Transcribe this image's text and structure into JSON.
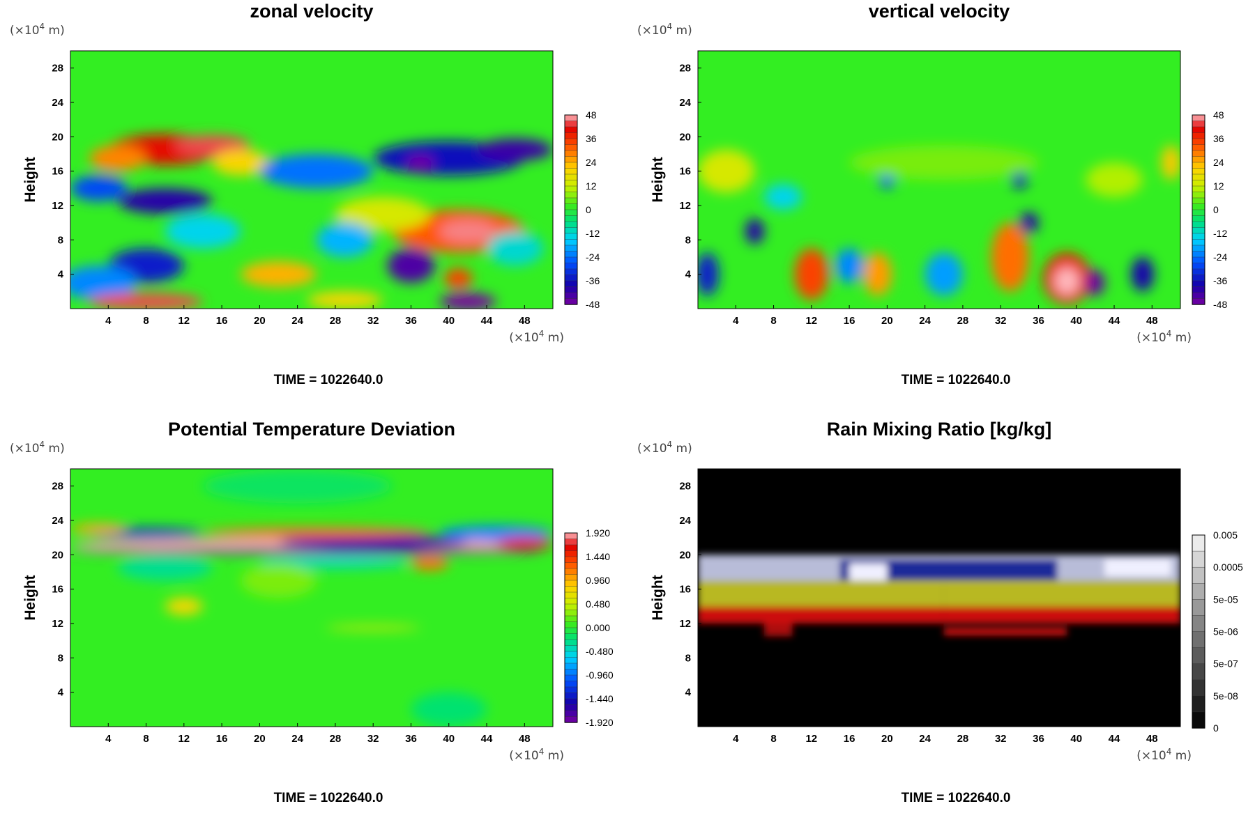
{
  "chart_data": [
    {
      "type": "heatmap",
      "title": "zonal velocity",
      "ylabel": "Height",
      "x_unit_prefix": "(×10",
      "x_unit_exp": "4",
      "x_unit_suffix": " m)",
      "y_unit_prefix": "(×10",
      "y_unit_exp": "4",
      "y_unit_suffix": " m)",
      "xlim": [
        0,
        51
      ],
      "ylim": [
        0,
        30
      ],
      "x_ticks": [
        4,
        8,
        12,
        16,
        20,
        24,
        28,
        32,
        36,
        40,
        44,
        48
      ],
      "y_ticks": [
        4,
        8,
        12,
        16,
        20,
        24,
        28
      ],
      "colorbar": {
        "labels": [
          "48",
          "36",
          "24",
          "12",
          "0",
          "-12",
          "-24",
          "-36",
          "-48"
        ],
        "scale": "rainbow"
      },
      "background": "#33ee22",
      "blobs": [
        {
          "x": 10,
          "y": 18.5,
          "rx": 6,
          "ry": 1.8,
          "value": 40
        },
        {
          "x": 15,
          "y": 19,
          "rx": 4,
          "ry": 1.2,
          "value": 44
        },
        {
          "x": 5,
          "y": 17.5,
          "rx": 3,
          "ry": 1.5,
          "value": 28
        },
        {
          "x": 18,
          "y": 17,
          "rx": 3,
          "ry": 1.5,
          "value": 20
        },
        {
          "x": 10,
          "y": 12.5,
          "rx": 5,
          "ry": 1.5,
          "value": -40
        },
        {
          "x": 3,
          "y": 14,
          "rx": 3,
          "ry": 1.5,
          "value": -28
        },
        {
          "x": 26,
          "y": 16,
          "rx": 6,
          "ry": 2,
          "value": -24
        },
        {
          "x": 40,
          "y": 17.5,
          "rx": 8,
          "ry": 2,
          "value": -36
        },
        {
          "x": 47,
          "y": 18.5,
          "rx": 4,
          "ry": 1.3,
          "value": -42
        },
        {
          "x": 37,
          "y": 17,
          "rx": 1.5,
          "ry": 0.7,
          "value": -48
        },
        {
          "x": 41,
          "y": 9,
          "rx": 7,
          "ry": 2.5,
          "value": 32
        },
        {
          "x": 42,
          "y": 9,
          "rx": 3,
          "ry": 1.3,
          "value": 46
        },
        {
          "x": 33,
          "y": 11,
          "rx": 5,
          "ry": 2,
          "value": 14
        },
        {
          "x": 29,
          "y": 8,
          "rx": 3,
          "ry": 2,
          "value": -18
        },
        {
          "x": 8,
          "y": 5,
          "rx": 4,
          "ry": 2,
          "value": -34
        },
        {
          "x": 3,
          "y": 3,
          "rx": 4,
          "ry": 2,
          "value": -22
        },
        {
          "x": 14,
          "y": 9,
          "rx": 4,
          "ry": 2,
          "value": -14
        },
        {
          "x": 22,
          "y": 4,
          "rx": 4,
          "ry": 1.5,
          "value": 24
        },
        {
          "x": 36,
          "y": 5,
          "rx": 2.5,
          "ry": 2,
          "value": -44
        },
        {
          "x": 41,
          "y": 3.5,
          "rx": 1.5,
          "ry": 1.2,
          "value": 34
        },
        {
          "x": 8,
          "y": 0.8,
          "rx": 6,
          "ry": 1,
          "value": 44
        },
        {
          "x": 42,
          "y": 0.8,
          "rx": 3,
          "ry": 1,
          "value": -48
        },
        {
          "x": 29,
          "y": 1,
          "rx": 4,
          "ry": 1,
          "value": 20
        },
        {
          "x": 47,
          "y": 7,
          "rx": 3,
          "ry": 2,
          "value": -12
        }
      ],
      "time_label": "TIME = 1022640.0"
    },
    {
      "type": "heatmap",
      "title": "vertical velocity",
      "ylabel": "Height",
      "x_unit_prefix": "(×10",
      "x_unit_exp": "4",
      "x_unit_suffix": " m)",
      "y_unit_prefix": "(×10",
      "y_unit_exp": "4",
      "y_unit_suffix": " m)",
      "xlim": [
        0,
        51
      ],
      "ylim": [
        0,
        30
      ],
      "x_ticks": [
        4,
        8,
        12,
        16,
        20,
        24,
        28,
        32,
        36,
        40,
        44,
        48
      ],
      "y_ticks": [
        4,
        8,
        12,
        16,
        20,
        24,
        28
      ],
      "colorbar": {
        "labels": [
          "48",
          "36",
          "24",
          "12",
          "0",
          "-12",
          "-24",
          "-36",
          "-48"
        ],
        "scale": "rainbow"
      },
      "background": "#33ee22",
      "blobs": [
        {
          "x": 12,
          "y": 4,
          "rx": 1.8,
          "ry": 3,
          "value": 34
        },
        {
          "x": 19,
          "y": 4,
          "rx": 1.5,
          "ry": 2.5,
          "value": 26
        },
        {
          "x": 33,
          "y": 6,
          "rx": 2,
          "ry": 4,
          "value": 30
        },
        {
          "x": 39,
          "y": 3.5,
          "rx": 2.5,
          "ry": 3,
          "value": 38
        },
        {
          "x": 39,
          "y": 3.2,
          "rx": 1.3,
          "ry": 1.6,
          "value": 48
        },
        {
          "x": 16,
          "y": 5,
          "rx": 1.5,
          "ry": 2,
          "value": -22
        },
        {
          "x": 26,
          "y": 4,
          "rx": 2,
          "ry": 2.5,
          "value": -20
        },
        {
          "x": 42,
          "y": 3,
          "rx": 1,
          "ry": 1.5,
          "value": -46
        },
        {
          "x": 47,
          "y": 4,
          "rx": 1.2,
          "ry": 2,
          "value": -38
        },
        {
          "x": 6,
          "y": 9,
          "rx": 1,
          "ry": 1.5,
          "value": -40
        },
        {
          "x": 1,
          "y": 4,
          "rx": 1.2,
          "ry": 2.5,
          "value": -34
        },
        {
          "x": 35,
          "y": 10,
          "rx": 1,
          "ry": 1.2,
          "value": -40
        },
        {
          "x": 34,
          "y": 15,
          "rx": 0.8,
          "ry": 1,
          "value": -36
        },
        {
          "x": 20,
          "y": 15,
          "rx": 0.8,
          "ry": 1,
          "value": -28
        },
        {
          "x": 3,
          "y": 16,
          "rx": 3,
          "ry": 2.5,
          "value": 14
        },
        {
          "x": 50,
          "y": 17,
          "rx": 1,
          "ry": 2,
          "value": 22
        },
        {
          "x": 9,
          "y": 13,
          "rx": 2,
          "ry": 1.5,
          "value": -14
        },
        {
          "x": 44,
          "y": 15,
          "rx": 3,
          "ry": 2,
          "value": 10
        },
        {
          "x": 26,
          "y": 17,
          "rx": 10,
          "ry": 2,
          "value": 6
        }
      ],
      "time_label": "TIME = 1022640.0"
    },
    {
      "type": "heatmap",
      "title": "Potential Temperature Deviation",
      "ylabel": "Height",
      "x_unit_prefix": "(×10",
      "x_unit_exp": "4",
      "x_unit_suffix": " m)",
      "y_unit_prefix": "(×10",
      "y_unit_exp": "4",
      "y_unit_suffix": " m)",
      "xlim": [
        0,
        51
      ],
      "ylim": [
        0,
        30
      ],
      "x_ticks": [
        4,
        8,
        12,
        16,
        20,
        24,
        28,
        32,
        36,
        40,
        44,
        48
      ],
      "y_ticks": [
        4,
        8,
        12,
        16,
        20,
        24,
        28
      ],
      "colorbar": {
        "labels": [
          "1.920",
          "1.440",
          "0.960",
          "0.480",
          "0.000",
          "-0.480",
          "-0.960",
          "-1.440",
          "-1.920"
        ],
        "scale": "rainbow"
      },
      "background": "#33ee22",
      "blobs": [
        {
          "x": 25,
          "y": 21,
          "rx": 25,
          "ry": 0.9,
          "value": 1.9
        },
        {
          "x": 25,
          "y": 20.4,
          "rx": 25,
          "ry": 0.35,
          "value": -1.9
        },
        {
          "x": 32,
          "y": 21.5,
          "rx": 10,
          "ry": 0.8,
          "value": -1.6
        },
        {
          "x": 26,
          "y": 22.6,
          "rx": 12,
          "ry": 0.6,
          "value": 1.2
        },
        {
          "x": 8,
          "y": 22.5,
          "rx": 6,
          "ry": 0.6,
          "value": -1.3
        },
        {
          "x": 45,
          "y": 22.5,
          "rx": 6,
          "ry": 0.9,
          "value": -0.9
        },
        {
          "x": 3,
          "y": 23,
          "rx": 3,
          "ry": 0.6,
          "value": 1.0
        },
        {
          "x": 48,
          "y": 21.3,
          "rx": 3,
          "ry": 0.7,
          "value": 1.6
        },
        {
          "x": 38,
          "y": 19,
          "rx": 2,
          "ry": 0.8,
          "value": 1.2
        },
        {
          "x": 12,
          "y": 14,
          "rx": 2,
          "ry": 1,
          "value": 0.8
        },
        {
          "x": 10,
          "y": 18.5,
          "rx": 5,
          "ry": 1.5,
          "value": -0.3
        },
        {
          "x": 28,
          "y": 19.2,
          "rx": 8,
          "ry": 0.8,
          "value": -0.4
        },
        {
          "x": 22,
          "y": 17,
          "rx": 4,
          "ry": 2,
          "value": 0.25
        },
        {
          "x": 24,
          "y": 28,
          "rx": 10,
          "ry": 2,
          "value": -0.15
        },
        {
          "x": 32,
          "y": 11.5,
          "rx": 5,
          "ry": 0.3,
          "value": 0.6
        },
        {
          "x": 40,
          "y": 2,
          "rx": 4,
          "ry": 2,
          "value": -0.2
        }
      ],
      "time_label": "TIME = 1022640.0"
    },
    {
      "type": "heatmap",
      "title": "Rain Mixing Ratio [kg/kg]",
      "ylabel": "Height",
      "x_unit_prefix": "(×10",
      "x_unit_exp": "4",
      "x_unit_suffix": " m)",
      "y_unit_prefix": "(×10",
      "y_unit_exp": "4",
      "y_unit_suffix": " m)",
      "xlim": [
        0,
        51
      ],
      "ylim": [
        0,
        30
      ],
      "x_ticks": [
        4,
        8,
        12,
        16,
        20,
        24,
        28,
        32,
        36,
        40,
        44,
        48
      ],
      "y_ticks": [
        4,
        8,
        12,
        16,
        20,
        24,
        28
      ],
      "colorbar": {
        "labels": [
          "0.005",
          "0.0005",
          "5e-05",
          "5e-06",
          "5e-07",
          "5e-08",
          "0"
        ],
        "scale": "gray"
      },
      "background": "#000000",
      "layers": [
        {
          "x0": 0,
          "x1": 26,
          "y0": 12,
          "y1": 14,
          "color": "#cc1111"
        },
        {
          "x0": 26,
          "x1": 51,
          "y0": 12,
          "y1": 14,
          "color": "#cc1111"
        },
        {
          "x0": 0,
          "x1": 26,
          "y0": 14,
          "y1": 17,
          "color": "#b8b820"
        },
        {
          "x0": 26,
          "x1": 51,
          "y0": 14,
          "y1": 17,
          "color": "#b8b820"
        },
        {
          "x0": 0,
          "x1": 26,
          "y0": 17,
          "y1": 20,
          "color": "#b8bcd8"
        },
        {
          "x0": 26,
          "x1": 51,
          "y0": 17,
          "y1": 20,
          "color": "#b8bcd8"
        },
        {
          "x0": 15,
          "x1": 38,
          "y0": 17,
          "y1": 19.5,
          "color": "#1a2a99"
        },
        {
          "x0": 26,
          "x1": 39,
          "y0": 10.6,
          "y1": 11.5,
          "color": "#cc1111"
        },
        {
          "x0": 7,
          "x1": 10,
          "y0": 10.5,
          "y1": 12,
          "color": "#aa1010"
        },
        {
          "x0": 16,
          "x1": 20,
          "y0": 17,
          "y1": 19,
          "color": "#f0f0ff"
        },
        {
          "x0": 43,
          "x1": 50,
          "y0": 17.5,
          "y1": 19.5,
          "color": "#f0f0ff"
        }
      ],
      "time_label": "TIME = 1022640.0"
    }
  ]
}
